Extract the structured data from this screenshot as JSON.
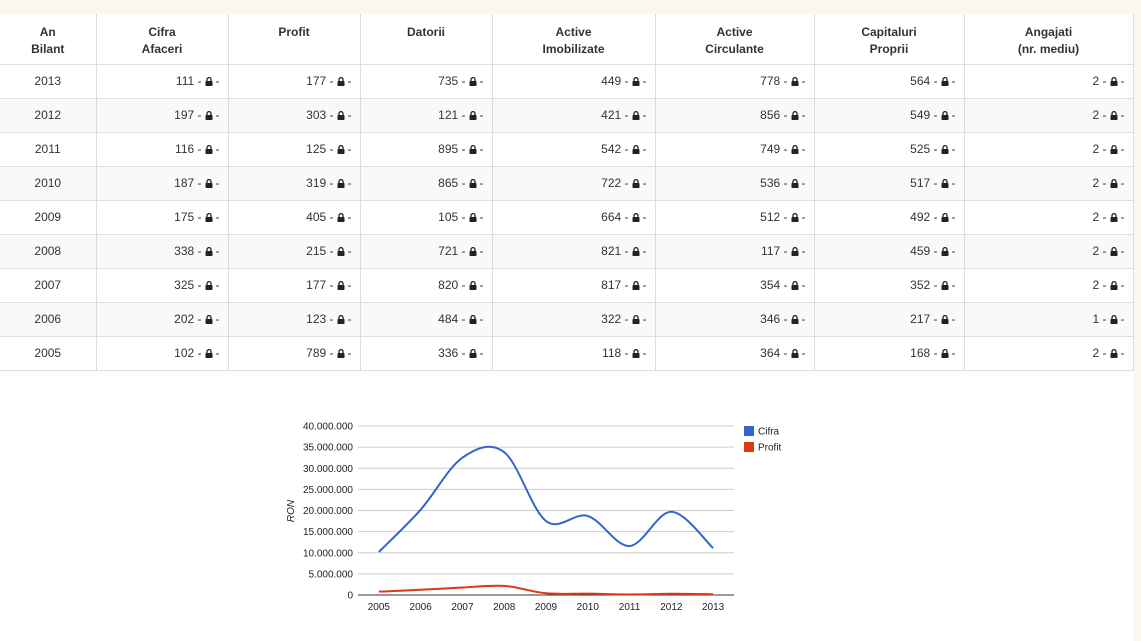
{
  "table": {
    "header": [
      [
        "An",
        "Bilant"
      ],
      [
        "Cifra",
        "Afaceri"
      ],
      [
        "Profit"
      ],
      [
        "Datorii"
      ],
      [
        "Active",
        "Imobilizate"
      ],
      [
        "Active",
        "Circulante"
      ],
      [
        "Capitaluri",
        "Proprii"
      ],
      [
        "Angajati",
        "(nr. mediu)"
      ]
    ],
    "rows": [
      [
        "2013",
        [
          "111 -",
          "-"
        ],
        [
          "177 -",
          "-"
        ],
        [
          "735 -",
          "-"
        ],
        [
          "449 -",
          "-"
        ],
        [
          "778 -",
          "-"
        ],
        [
          "564 -",
          "-"
        ],
        [
          "2 -",
          "-"
        ]
      ],
      [
        "2012",
        [
          "197 -",
          "-"
        ],
        [
          "303 -",
          "-"
        ],
        [
          "121 -",
          "-"
        ],
        [
          "421 -",
          "-"
        ],
        [
          "856 -",
          "-"
        ],
        [
          "549 -",
          "-"
        ],
        [
          "2 -",
          "-"
        ]
      ],
      [
        "2011",
        [
          "116 -",
          "-"
        ],
        [
          "125 -",
          "-"
        ],
        [
          "895 -",
          "-"
        ],
        [
          "542 -",
          "-"
        ],
        [
          "749 -",
          "-"
        ],
        [
          "525 -",
          "-"
        ],
        [
          "2 -",
          "-"
        ]
      ],
      [
        "2010",
        [
          "187 -",
          "-"
        ],
        [
          "319 -",
          "-"
        ],
        [
          "865 -",
          "-"
        ],
        [
          "722 -",
          "-"
        ],
        [
          "536 -",
          "-"
        ],
        [
          "517 -",
          "-"
        ],
        [
          "2 -",
          "-"
        ]
      ],
      [
        "2009",
        [
          "175 -",
          "-"
        ],
        [
          "405 -",
          "-"
        ],
        [
          "105 -",
          "-"
        ],
        [
          "664 -",
          "-"
        ],
        [
          "512 -",
          "-"
        ],
        [
          "492 -",
          "-"
        ],
        [
          "2 -",
          "-"
        ]
      ],
      [
        "2008",
        [
          "338 -",
          "-"
        ],
        [
          "215 -",
          "-"
        ],
        [
          "721 -",
          "-"
        ],
        [
          "821 -",
          "-"
        ],
        [
          "117 -",
          "-"
        ],
        [
          "459 -",
          "-"
        ],
        [
          "2 -",
          "-"
        ]
      ],
      [
        "2007",
        [
          "325 -",
          "-"
        ],
        [
          "177 -",
          "-"
        ],
        [
          "820 -",
          "-"
        ],
        [
          "817 -",
          "-"
        ],
        [
          "354 -",
          "-"
        ],
        [
          "352 -",
          "-"
        ],
        [
          "2 -",
          "-"
        ]
      ],
      [
        "2006",
        [
          "202 -",
          "-"
        ],
        [
          "123 -",
          "-"
        ],
        [
          "484 -",
          "-"
        ],
        [
          "322 -",
          "-"
        ],
        [
          "346 -",
          "-"
        ],
        [
          "217 -",
          "-"
        ],
        [
          "1 -",
          "-"
        ]
      ],
      [
        "2005",
        [
          "102 -",
          "-"
        ],
        [
          "789 -",
          "-"
        ],
        [
          "336 -",
          "-"
        ],
        [
          "118 -",
          "-"
        ],
        [
          "364 -",
          "-"
        ],
        [
          "168 -",
          "-"
        ],
        [
          "2 -",
          "-"
        ]
      ]
    ]
  },
  "chart_data": {
    "type": "line",
    "y_label": "RON",
    "categories": [
      "2005",
      "2006",
      "2007",
      "2008",
      "2009",
      "2010",
      "2011",
      "2012",
      "2013"
    ],
    "series": [
      {
        "name": "Cifra",
        "color": "#3366cc",
        "values": [
          10200000,
          20200000,
          32500000,
          33800000,
          17500000,
          18700000,
          11600000,
          19700000,
          11100000
        ]
      },
      {
        "name": "Profit",
        "color": "#dc3912",
        "values": [
          789000,
          1230000,
          1770000,
          2150000,
          405000,
          319000,
          125000,
          303000,
          177000
        ]
      }
    ],
    "ylim": [
      0,
      40000000
    ],
    "yticks": [
      0,
      {
        "value": 5000000,
        "label": "5.000.000"
      },
      {
        "value": 10000000,
        "label": "10.000.000"
      },
      {
        "value": 15000000,
        "label": "15.000.000"
      },
      {
        "value": 20000000,
        "label": "20.000.000"
      },
      {
        "value": 25000000,
        "label": "25.000.000"
      },
      {
        "value": 30000000,
        "label": "30.000.000"
      },
      {
        "value": 35000000,
        "label": "35.000.000"
      },
      {
        "value": 40000000,
        "label": "40.000.000"
      }
    ],
    "grid": true,
    "legend": "right",
    "smooth": true
  }
}
